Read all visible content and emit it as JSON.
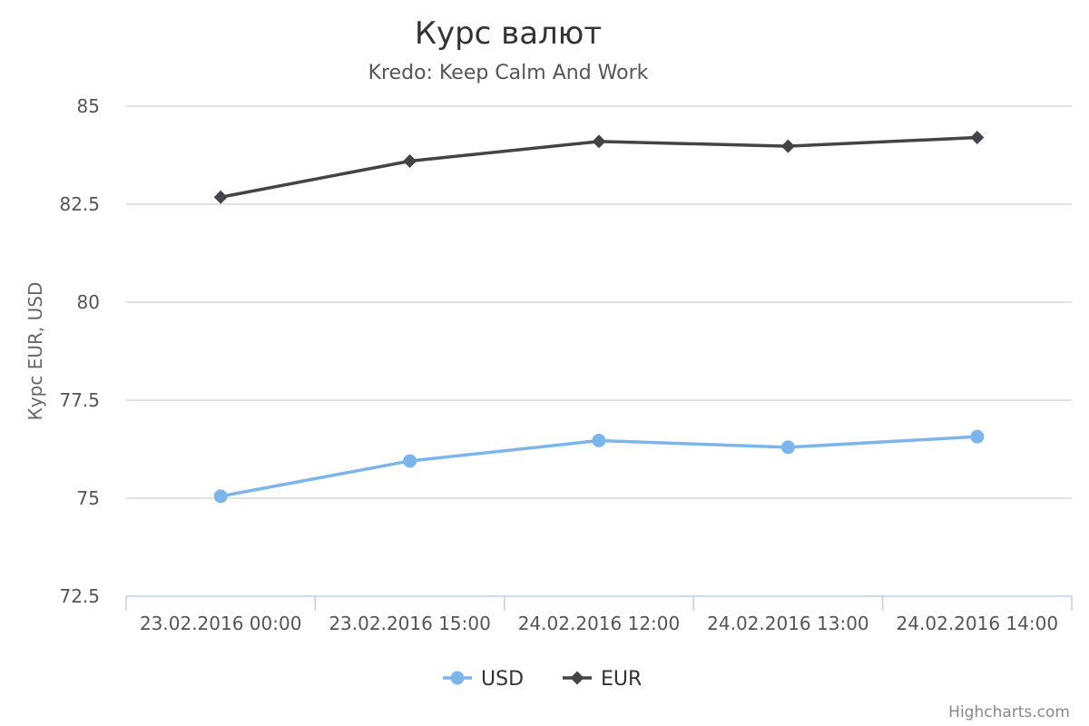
{
  "chart_data": {
    "type": "line",
    "title": "Курс валют",
    "subtitle": "Kredo: Keep Calm And Work",
    "ylabel": "Курс EUR, USD",
    "categories": [
      "23.02.2016 00:00",
      "23.02.2016 15:00",
      "24.02.2016 12:00",
      "24.02.2016 13:00",
      "24.02.2016 14:00"
    ],
    "ylim": [
      72.5,
      85
    ],
    "yticks": [
      "72.5",
      "75",
      "77.5",
      "80",
      "82.5",
      "85"
    ],
    "grid": true,
    "legend_position": "bottom-center",
    "series": [
      {
        "name": "USD",
        "values": [
          75.05,
          75.95,
          76.47,
          76.3,
          76.57
        ],
        "color": "#7cb5ec",
        "marker": "circle"
      },
      {
        "name": "EUR",
        "values": [
          82.68,
          83.6,
          84.1,
          83.98,
          84.2
        ],
        "color": "#434348",
        "marker": "diamond"
      }
    ],
    "credits": "Highcharts.com"
  }
}
